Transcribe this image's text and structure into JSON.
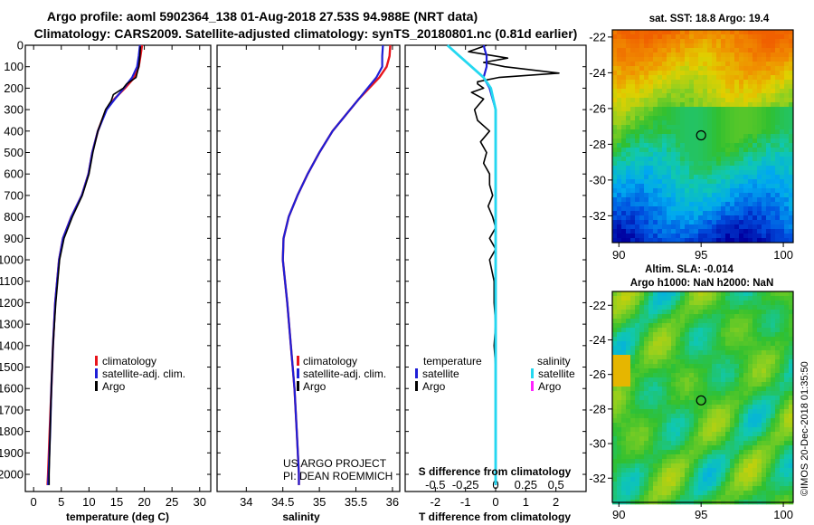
{
  "header": {
    "line1": "Argo profile: aoml 5902364_138 01-Aug-2018 27.53S 94.988E (NRT data)",
    "line2": "Climatology: CARS2009. Satellite-adjusted climatology: synTS_20180801.nc (0.81d earlier)"
  },
  "colors": {
    "climatology": "#e8141c",
    "satellite": "#1f1fd6",
    "argo": "#000000",
    "satellite_s": "#24d8f0",
    "argo_s": "#ff22ff"
  },
  "chart_data": [
    {
      "type": "line",
      "id": "temperature",
      "xlabel": "temperature (deg C)",
      "ylabel": "",
      "xlim": [
        -1.5,
        32
      ],
      "ylim": [
        2080,
        0
      ],
      "xticks": [
        "0",
        "5",
        "10",
        "15",
        "20",
        "25",
        "30"
      ],
      "xtick_values": [
        0,
        5,
        10,
        15,
        20,
        25,
        30
      ],
      "yticks": [
        "0",
        "100",
        "200",
        "300",
        "400",
        "500",
        "600",
        "700",
        "800",
        "900",
        "1000",
        "1100",
        "1200",
        "1300",
        "1400",
        "1500",
        "1600",
        "1700",
        "1800",
        "1900",
        "2000"
      ],
      "ytick_values": [
        0,
        100,
        200,
        300,
        400,
        500,
        600,
        700,
        800,
        900,
        1000,
        1100,
        1200,
        1300,
        1400,
        1500,
        1600,
        1700,
        1800,
        1900,
        2000
      ],
      "legend": [
        "climatology",
        "satellite-adj. clim.",
        "Argo"
      ],
      "series": [
        {
          "name": "climatology",
          "depth": [
            0,
            50,
            100,
            150,
            200,
            250,
            300,
            400,
            500,
            600,
            700,
            800,
            900,
            1000,
            1200,
            1400,
            1600,
            1800,
            2000,
            2050
          ],
          "values": [
            19.6,
            19.3,
            19.0,
            18.2,
            16.5,
            14.6,
            13.1,
            11.6,
            10.6,
            9.9,
            8.7,
            6.8,
            5.3,
            4.6,
            3.9,
            3.5,
            3.2,
            2.9,
            2.6,
            2.5
          ]
        },
        {
          "name": "satellite-adj. clim.",
          "depth": [
            0,
            50,
            100,
            150,
            200,
            250,
            300,
            400,
            500,
            600,
            700,
            800,
            900,
            1000,
            1200,
            1400,
            1600,
            1800,
            2000,
            2050
          ],
          "values": [
            19.2,
            19.0,
            18.7,
            17.8,
            16.3,
            14.7,
            13.2,
            11.6,
            10.6,
            9.9,
            8.7,
            6.8,
            5.3,
            4.6,
            3.9,
            3.5,
            3.2,
            3.0,
            2.7,
            2.6
          ]
        },
        {
          "name": "Argo",
          "depth": [
            5,
            50,
            100,
            150,
            180,
            200,
            230,
            260,
            300,
            400,
            500,
            600,
            700,
            800,
            900,
            1000,
            1200,
            1400,
            1600,
            1800,
            2000,
            2050
          ],
          "values": [
            19.3,
            19.2,
            19.0,
            18.5,
            16.8,
            16.2,
            14.4,
            14.0,
            13.0,
            11.6,
            10.7,
            10.0,
            8.8,
            7.0,
            5.5,
            4.7,
            4.0,
            3.5,
            3.2,
            3.0,
            2.8,
            2.8
          ]
        }
      ]
    },
    {
      "type": "line",
      "id": "salinity",
      "xlabel": "salinity",
      "xlim": [
        33.6,
        36.1
      ],
      "ylim": [
        2080,
        0
      ],
      "xticks": [
        "34",
        "34.5",
        "35",
        "35.5",
        "36"
      ],
      "xtick_values": [
        34,
        34.5,
        35,
        35.5,
        36
      ],
      "legend": [
        "climatology",
        "satellite-adj. clim.",
        "Argo"
      ],
      "note_line1": "US ARGO PROJECT",
      "note_line2": "PI: DEAN ROEMMICH",
      "series": [
        {
          "name": "climatology",
          "depth": [
            0,
            50,
            100,
            150,
            200,
            250,
            300,
            400,
            500,
            600,
            700,
            800,
            900,
            1000,
            1200,
            1400,
            1600,
            1800,
            2000,
            2050
          ],
          "values": [
            35.97,
            35.96,
            35.92,
            35.82,
            35.68,
            35.54,
            35.42,
            35.18,
            35.0,
            34.84,
            34.7,
            34.58,
            34.51,
            34.5,
            34.56,
            34.61,
            34.66,
            34.69,
            34.72,
            34.72
          ]
        },
        {
          "name": "satellite-adj. clim.",
          "depth": [
            0,
            50,
            100,
            150,
            200,
            250,
            300,
            400,
            500,
            600,
            700,
            800,
            900,
            1000,
            1200,
            1400,
            1600,
            1800,
            2000,
            2050
          ],
          "values": [
            35.87,
            35.86,
            35.86,
            35.78,
            35.66,
            35.54,
            35.42,
            35.18,
            35.0,
            34.84,
            34.7,
            34.58,
            34.51,
            34.5,
            34.56,
            34.61,
            34.66,
            34.69,
            34.72,
            34.72
          ]
        }
      ]
    },
    {
      "type": "line",
      "id": "difference",
      "xlabel": "T difference from climatology",
      "xlabel_top": "S difference from climatology",
      "xlim": [
        -3,
        3
      ],
      "ylim": [
        2080,
        0
      ],
      "xticks": [
        "-2",
        "-1",
        "0",
        "1",
        "2"
      ],
      "xtick_values": [
        -2,
        -1,
        0,
        1,
        2
      ],
      "s_xticks": [
        "-0.5",
        "-0.25",
        "0",
        "0.25",
        "0.5"
      ],
      "s_xtick_values": [
        -0.5,
        -0.25,
        0,
        0.25,
        0.5
      ],
      "legend_left_title": "temperature",
      "legend_left": [
        "satellite",
        "Argo"
      ],
      "legend_right_title": "salinity",
      "legend_right": [
        "satellite",
        "Argo"
      ],
      "series": [
        {
          "name": "T satellite",
          "depth": [
            0,
            50,
            100,
            150,
            200,
            300,
            500,
            800,
            1200,
            2050
          ],
          "values": [
            -0.4,
            -0.3,
            -0.3,
            -0.4,
            -0.2,
            0.0,
            0.0,
            0.0,
            0.0,
            0.0
          ]
        },
        {
          "name": "S satellite",
          "depth": [
            0,
            50,
            100,
            150,
            200,
            300,
            500,
            800,
            1200,
            2050
          ],
          "values": [
            -0.4,
            -0.3,
            -0.2,
            -0.1,
            -0.04,
            0.0,
            0.0,
            0.0,
            0.0,
            0.0
          ]
        },
        {
          "name": "T Argo",
          "depth": [
            0,
            30,
            60,
            80,
            100,
            130,
            150,
            170,
            180,
            200,
            220,
            250,
            300,
            350,
            400,
            450,
            500,
            550,
            600,
            650,
            700,
            750,
            800,
            850,
            900,
            950,
            1000,
            1100,
            1200,
            1300,
            1400,
            1500,
            1600,
            1700,
            1800,
            1900,
            2000,
            2050
          ],
          "values": [
            -0.3,
            -0.9,
            0.4,
            -0.4,
            0.3,
            2.1,
            0.1,
            -0.6,
            -0.6,
            -0.4,
            -0.8,
            -0.4,
            -0.7,
            -0.6,
            -0.2,
            -0.5,
            -0.3,
            -0.4,
            -0.2,
            -0.2,
            -0.1,
            -0.25,
            -0.1,
            0.0,
            -0.2,
            0.0,
            -0.2,
            -0.05,
            -0.05,
            0.0,
            -0.05,
            0.0,
            0.0,
            0.0,
            0.0,
            0.0,
            0.0,
            0.0
          ]
        }
      ]
    }
  ],
  "maps": {
    "sst": {
      "title": "sat. SST: 18.8 Argo: 19.4",
      "yticks": [
        "-22",
        "-24",
        "-26",
        "-28",
        "-30",
        "-32"
      ],
      "xticks": [
        "90",
        "95",
        "100"
      ],
      "marker_lon": 95,
      "marker_lat": -27.5
    },
    "sla": {
      "title_line1": "Altim. SLA: -0.014",
      "title_line2": "Argo h1000: NaN h2000: NaN",
      "yticks": [
        "-22",
        "-24",
        "-26",
        "-28",
        "-30",
        "-32"
      ],
      "xticks": [
        "90",
        "95",
        "100"
      ],
      "marker_lon": 95,
      "marker_lat": -27.5
    }
  },
  "footer": {
    "credit": "©IMOS 20-Dec-2018 01:35:50"
  }
}
